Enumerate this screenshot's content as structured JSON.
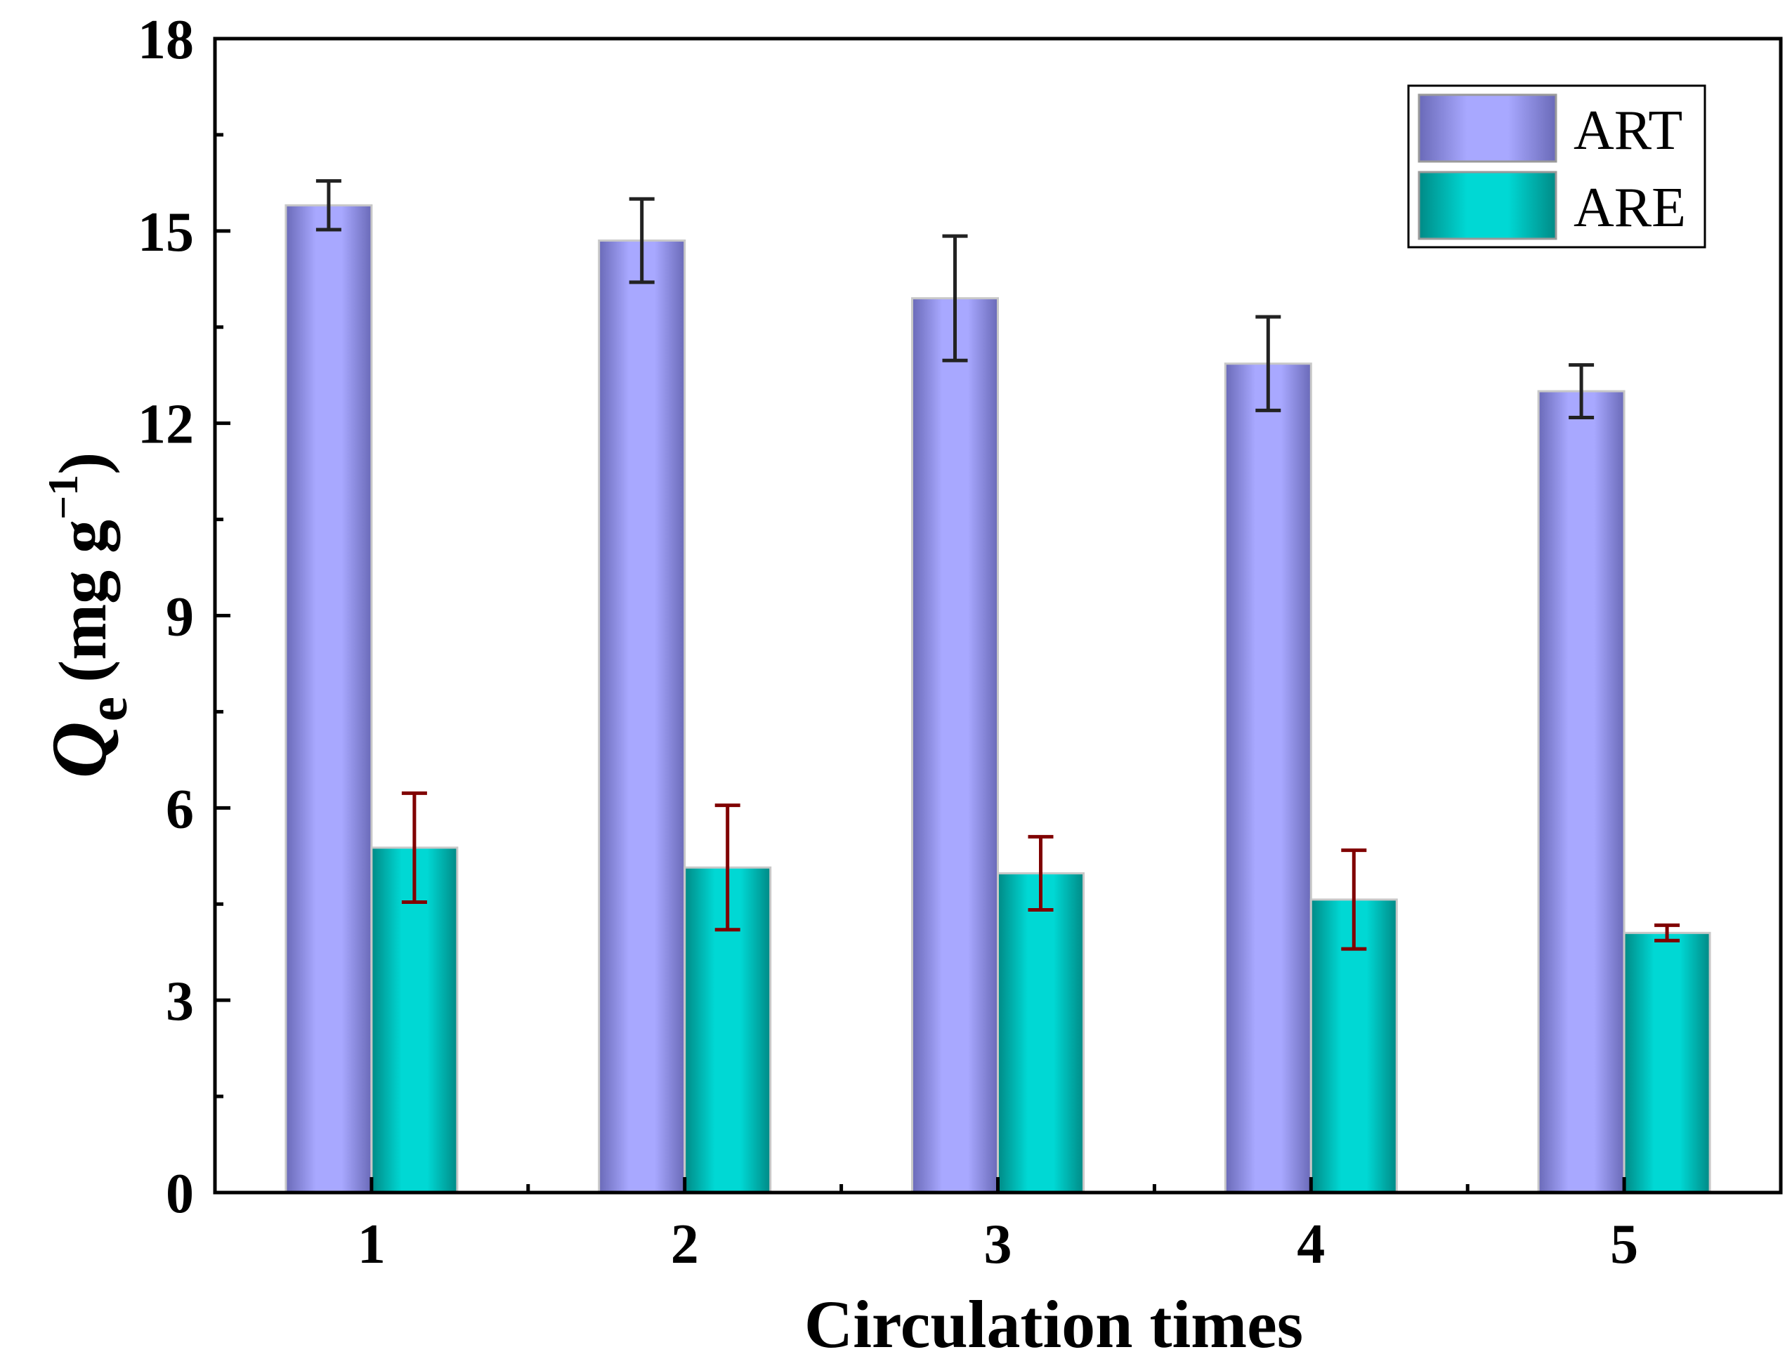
{
  "chart_data": {
    "type": "bar",
    "title": "",
    "xlabel": "Circulation times",
    "ylabel": {
      "symbol": "Q",
      "subscript": "e",
      "unit_open": "(mg g",
      "unit_exponent": "−1",
      "unit_close": ")"
    },
    "categories": [
      "1",
      "2",
      "3",
      "4",
      "5"
    ],
    "ylim": [
      0,
      18
    ],
    "yticks": [
      "0",
      "3",
      "6",
      "9",
      "12",
      "15",
      "18"
    ],
    "grid": false,
    "legend": "top-right",
    "series": [
      {
        "name": "ART",
        "values": [
          15.4,
          14.85,
          13.95,
          12.93,
          12.5
        ],
        "errors": [
          0.38,
          0.65,
          0.97,
          0.73,
          0.41
        ],
        "color": "#a8a8ff",
        "edge_color": "#6a6ab8",
        "error_color": "#222222"
      },
      {
        "name": "ARE",
        "values": [
          5.38,
          5.07,
          4.98,
          4.57,
          4.05
        ],
        "errors": [
          0.85,
          0.97,
          0.57,
          0.77,
          0.12
        ],
        "color": "#00d8d4",
        "edge_color": "#008a86",
        "error_color": "#800000"
      }
    ]
  }
}
